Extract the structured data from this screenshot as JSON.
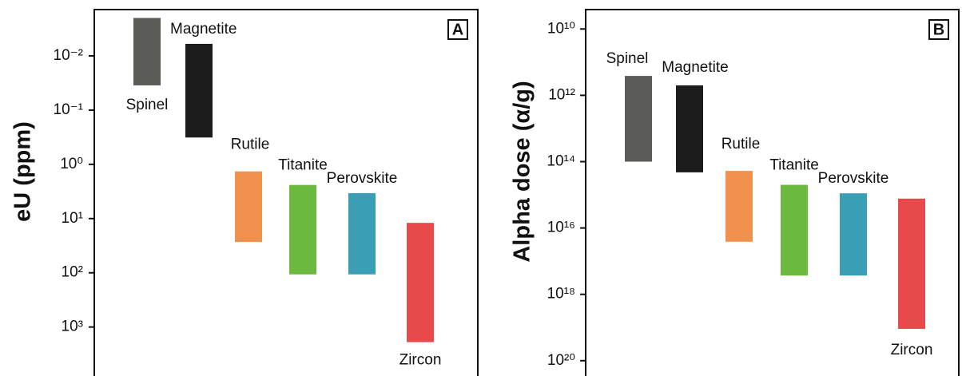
{
  "chart_data": [
    {
      "type": "floating_bar",
      "panel_label": "A",
      "y_label": "eU (ppm)",
      "log_scale": true,
      "y_inverted": true,
      "categories": [
        "Spinel",
        "Magnetite",
        "Rutile",
        "Titanite",
        "Perovskite",
        "Zircon"
      ],
      "values": [
        [
          0.002,
          0.035
        ],
        [
          0.006,
          0.32
        ],
        [
          1.35,
          27
        ],
        [
          2.4,
          107
        ],
        [
          3.4,
          107
        ],
        [
          12,
          1900
        ]
      ],
      "colors": [
        "#5b5b57",
        "#1c1c1c",
        "#f0924d",
        "#6cb93f",
        "#3a9fb5",
        "#e8494a"
      ],
      "ylim": [
        0.0014,
        8000
      ],
      "yticks": [
        {
          "value": 0.01,
          "label": "10⁻²"
        },
        {
          "value": 0.1,
          "label": "10⁻¹"
        },
        {
          "value": 1,
          "label": "10⁰"
        },
        {
          "value": 10,
          "label": "10¹"
        },
        {
          "value": 100,
          "label": "10²"
        },
        {
          "value": 1000,
          "label": "10³"
        }
      ]
    },
    {
      "type": "floating_bar",
      "panel_label": "B",
      "y_label": "Alpha dose (α/g)",
      "log_scale": true,
      "y_inverted": true,
      "categories": [
        "Spinel",
        "Magnetite",
        "Rutile",
        "Titanite",
        "Perovskite",
        "Zircon"
      ],
      "values": [
        [
          260000000000.0,
          100000000000000.0
        ],
        [
          500000000000.0,
          210000000000000.0
        ],
        [
          190000000000000.0,
          2.6e+16
        ],
        [
          500000000000000.0,
          2.7e+17
        ],
        [
          900000000000000.0,
          2.7e+17
        ],
        [
          1300000000000000.0,
          1.1e+19
        ]
      ],
      "colors": [
        "#5b5b57",
        "#1c1c1c",
        "#f0924d",
        "#6cb93f",
        "#3a9fb5",
        "#e8494a"
      ],
      "ylim": [
        2600000000.0,
        2.9e+20
      ],
      "yticks": [
        {
          "value": 10000000000.0,
          "label": "10¹⁰"
        },
        {
          "value": 1000000000000.0,
          "label": "10¹²"
        },
        {
          "value": 100000000000000.0,
          "label": "10¹⁴"
        },
        {
          "value": 1e+16,
          "label": "10¹⁶"
        },
        {
          "value": 1e+18,
          "label": "10¹⁸"
        },
        {
          "value": 1e+20,
          "label": "10²⁰"
        }
      ]
    }
  ]
}
